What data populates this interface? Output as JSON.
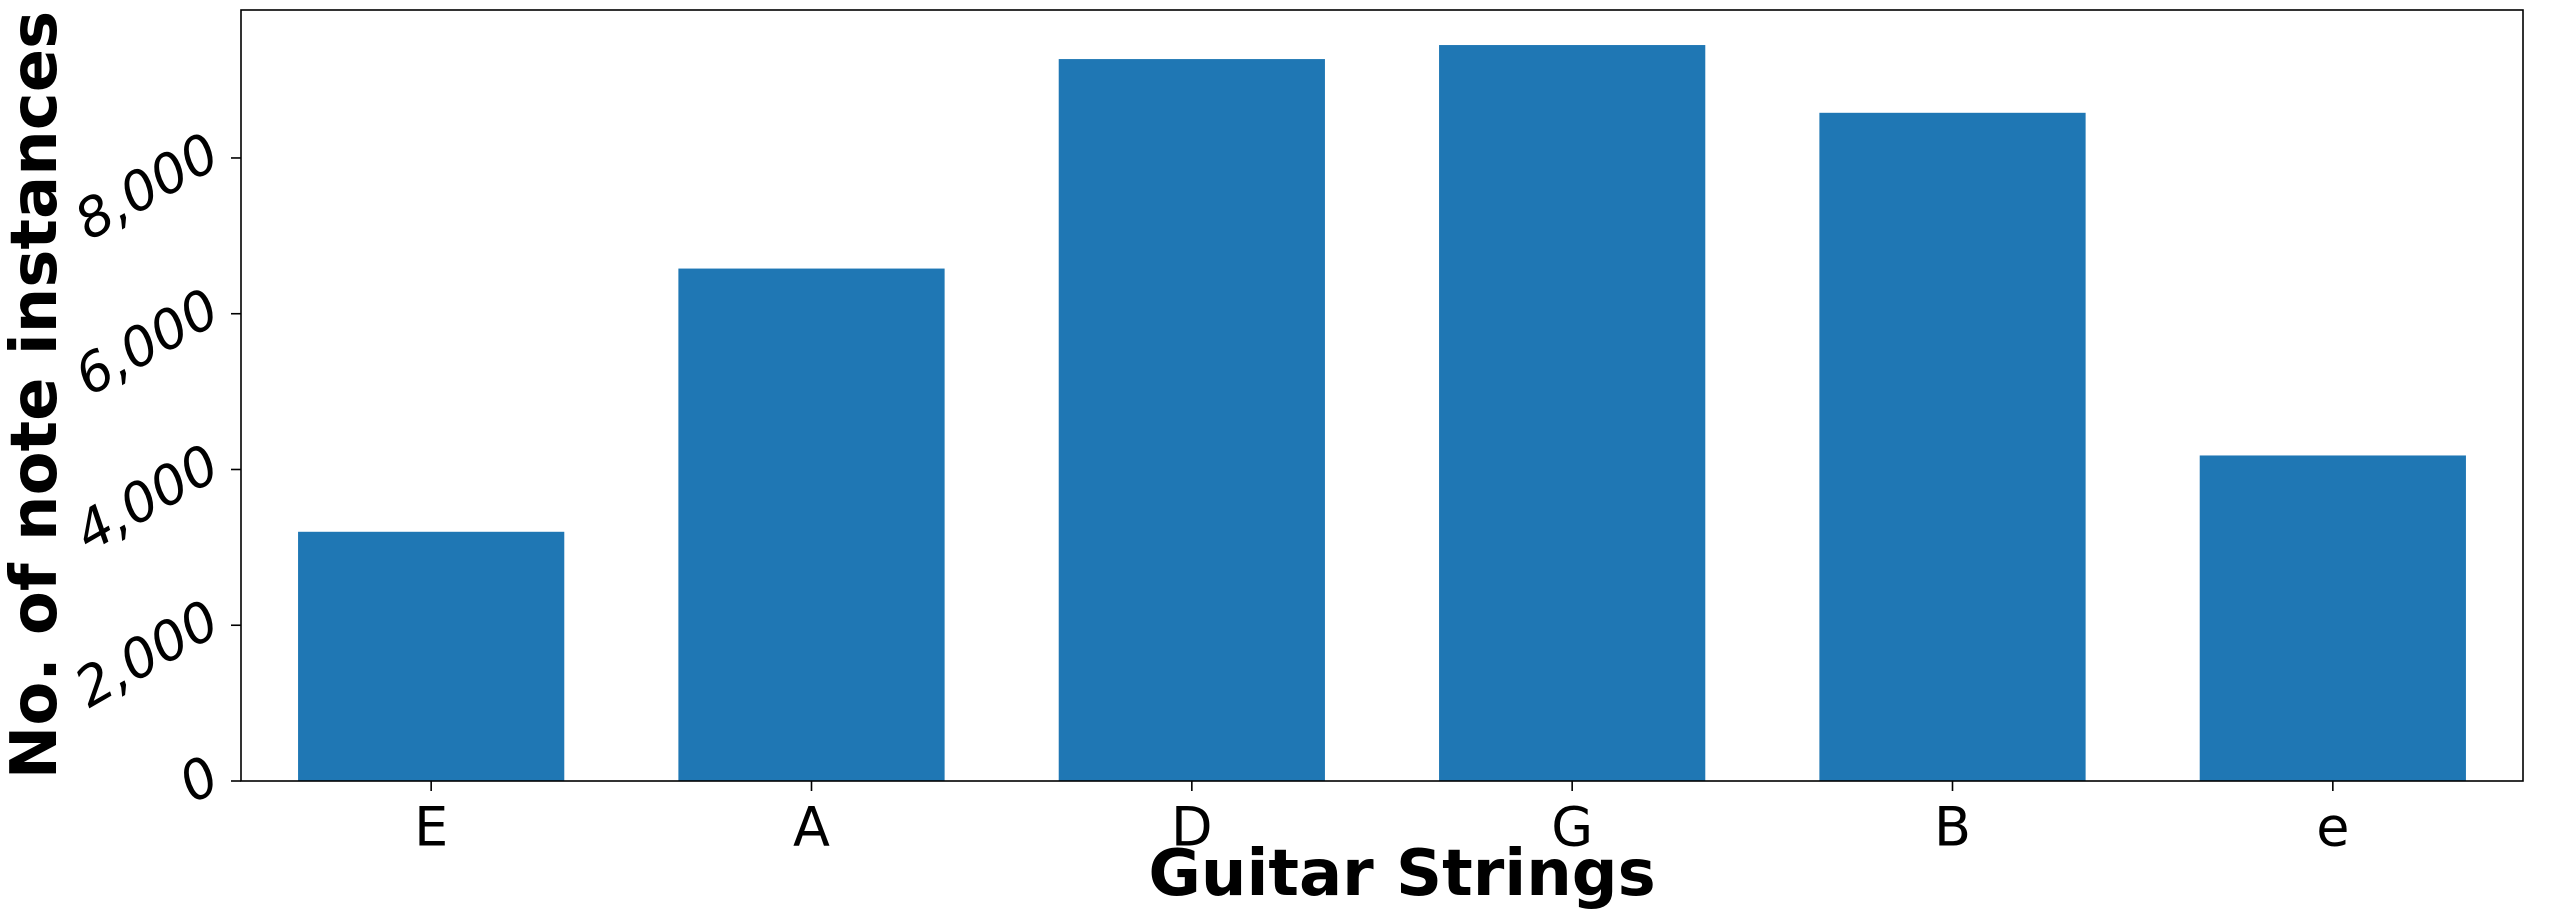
{
  "chart_data": {
    "type": "bar",
    "categories": [
      "E",
      "A",
      "D",
      "G",
      "B",
      "e"
    ],
    "values": [
      3200,
      6580,
      9270,
      9450,
      8580,
      4180
    ],
    "xlabel": "Guitar Strings",
    "ylabel": "No. of note instances",
    "ylim": [
      0,
      9900
    ],
    "yticks": [
      0,
      2000,
      4000,
      6000,
      8000
    ],
    "ytick_labels": [
      "0",
      "2,000",
      "4,000",
      "6,000",
      "8,000"
    ],
    "bar_color": "#1f77b4",
    "grid": false,
    "legend": "none"
  }
}
